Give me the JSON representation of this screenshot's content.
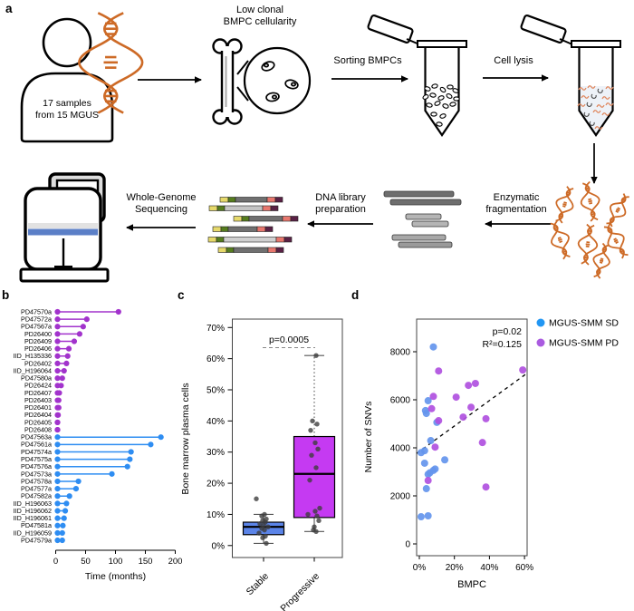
{
  "panels": {
    "a": "a",
    "b": "b",
    "c": "c",
    "d": "d"
  },
  "panel_a": {
    "person": {
      "lines": [
        "17 samples",
        "from 15 MGUS"
      ]
    },
    "bone": {
      "lines": [
        "Low clonal",
        "BMPC cellularity"
      ]
    },
    "sorting_label": "Sorting BMPCs",
    "lysis_label": "Cell lysis",
    "fragmentation": {
      "lines": [
        "Enzymatic",
        "fragmentation"
      ]
    },
    "library": {
      "lines": [
        "DNA library",
        "preparation"
      ]
    },
    "sequencing": {
      "lines": [
        "Whole-Genome",
        "Sequencing"
      ]
    }
  },
  "colors": {
    "sd_blue": "#2e8df2",
    "pd_purple": "#a233cc",
    "box_blue": "#5b84e8",
    "box_purple": "#c53af2",
    "scatter_blue": "#6495ed",
    "scatter_purple": "#b050e0",
    "legend_blue": "#2196f3",
    "legend_purple": "#aa5be0",
    "dna_orange": "#cd6a26",
    "jitter_gray": "#3d3d3d"
  },
  "chart_data": [
    {
      "type": "lollipop",
      "panel": "b",
      "xlabel": "Time (months)",
      "xticks": [
        0,
        50,
        100,
        150,
        200
      ],
      "xlim": [
        0,
        205
      ],
      "legend_note": "purple = progressive (PD), blue = stable (SD)",
      "samples": [
        {
          "id": "PD47570a",
          "group": "PD",
          "time": 105
        },
        {
          "id": "PD47572a",
          "group": "PD",
          "time": 52
        },
        {
          "id": "PD47567a",
          "group": "PD",
          "time": 46
        },
        {
          "id": "PD26400",
          "group": "PD",
          "time": 40
        },
        {
          "id": "PD26409",
          "group": "PD",
          "time": 31
        },
        {
          "id": "PD26406",
          "group": "PD",
          "time": 22
        },
        {
          "id": "IID_H135336",
          "group": "PD",
          "time": 20
        },
        {
          "id": "PD26402",
          "group": "PD",
          "time": 18
        },
        {
          "id": "IID_H196064",
          "group": "PD",
          "time": 14
        },
        {
          "id": "PD47580a",
          "group": "PD",
          "time": 11
        },
        {
          "id": "PD26424",
          "group": "PD",
          "time": 9
        },
        {
          "id": "PD26407",
          "group": "PD",
          "time": 6
        },
        {
          "id": "PD26403",
          "group": "PD",
          "time": 5
        },
        {
          "id": "PD26401",
          "group": "PD",
          "time": 5
        },
        {
          "id": "PD26404",
          "group": "PD",
          "time": 4
        },
        {
          "id": "PD26405",
          "group": "PD",
          "time": 3
        },
        {
          "id": "PD26408",
          "group": "PD",
          "time": 3
        },
        {
          "id": "PD47563a",
          "group": "SD",
          "time": 176
        },
        {
          "id": "PD47561a",
          "group": "SD",
          "time": 159
        },
        {
          "id": "PD47574a",
          "group": "SD",
          "time": 126
        },
        {
          "id": "PD47575a",
          "group": "SD",
          "time": 124
        },
        {
          "id": "PD47576a",
          "group": "SD",
          "time": 120
        },
        {
          "id": "PD47573a",
          "group": "SD",
          "time": 94
        },
        {
          "id": "PD47578a",
          "group": "SD",
          "time": 38
        },
        {
          "id": "PD47577a",
          "group": "SD",
          "time": 34
        },
        {
          "id": "PD47582a",
          "group": "SD",
          "time": 23
        },
        {
          "id": "IID_H196063",
          "group": "SD",
          "time": 18
        },
        {
          "id": "IID_H196062",
          "group": "SD",
          "time": 16
        },
        {
          "id": "IID_H196061",
          "group": "SD",
          "time": 14
        },
        {
          "id": "PD47581a",
          "group": "SD",
          "time": 12
        },
        {
          "id": "IID_H196059",
          "group": "SD",
          "time": 11
        },
        {
          "id": "PD47579a",
          "group": "SD",
          "time": 11
        }
      ]
    },
    {
      "type": "boxplot",
      "panel": "c",
      "ylabel": "Bone marrow plasma cells",
      "yticks_pct": [
        0,
        10,
        20,
        30,
        40,
        50,
        60,
        70
      ],
      "ylim": [
        0,
        73
      ],
      "annotation": "p=0.0005",
      "categories": [
        "Stable",
        "Progressive"
      ],
      "boxes": [
        {
          "label": "Stable",
          "fill": "#5b84e8",
          "q1": 3.5,
          "median": 6,
          "q3": 7.5,
          "whisker_low": 0.7,
          "whisker_high": 10,
          "points": [
            15,
            10,
            9.5,
            8.5,
            8,
            7.5,
            7,
            6.5,
            6,
            5.5,
            5,
            4,
            3,
            2.5,
            0.7
          ]
        },
        {
          "label": "Progressive",
          "fill": "#c53af2",
          "q1": 9,
          "median": 23,
          "q3": 35,
          "whisker_low": 4.5,
          "whisker_high": 61,
          "whisker_high_dotted": true,
          "points": [
            61,
            40,
            39,
            37,
            33,
            31,
            29,
            25,
            21,
            12,
            11,
            10,
            9.5,
            8,
            6,
            5,
            4.5
          ]
        }
      ]
    },
    {
      "type": "scatter",
      "panel": "d",
      "xlabel": "BMPC",
      "ylabel": "Number of SNVs",
      "xticks_pct": [
        0,
        20,
        40,
        60
      ],
      "yticks": [
        0,
        2000,
        4000,
        6000,
        8000
      ],
      "xlim": [
        -2,
        63
      ],
      "ylim": [
        0,
        9300
      ],
      "stats": [
        "p=0.02",
        "R²=0.125"
      ],
      "trend": {
        "x1": -1.5,
        "y1": 3770,
        "x2": 61,
        "y2": 7080,
        "style": "dashed"
      },
      "legend": [
        {
          "label": "MGUS-SMM SD",
          "color": "#2196f3"
        },
        {
          "label": "MGUS-SMM PD",
          "color": "#aa5be0"
        }
      ],
      "series": [
        {
          "name": "MGUS-SMM SD",
          "color": "#6495ed",
          "points": [
            [
              8,
              8200
            ],
            [
              5,
              5960
            ],
            [
              3.5,
              5550
            ],
            [
              4,
              5430
            ],
            [
              10,
              5060
            ],
            [
              6.5,
              4300
            ],
            [
              3,
              3880
            ],
            [
              1,
              3800
            ],
            [
              14.5,
              3500
            ],
            [
              3,
              3360
            ],
            [
              5,
              2900
            ],
            [
              6,
              2960
            ],
            [
              8,
              3060
            ],
            [
              9,
              3120
            ],
            [
              4,
              2300
            ],
            [
              1,
              1130
            ],
            [
              5,
              1170
            ]
          ]
        },
        {
          "name": "MGUS-SMM PD",
          "color": "#b050e0",
          "points": [
            [
              11,
              7200
            ],
            [
              59,
              7240
            ],
            [
              28,
              6600
            ],
            [
              32,
              6680
            ],
            [
              21,
              6110
            ],
            [
              8,
              6140
            ],
            [
              7,
              5630
            ],
            [
              29.5,
              5690
            ],
            [
              25,
              5280
            ],
            [
              38,
              5210
            ],
            [
              11,
              5130
            ],
            [
              9,
              4030
            ],
            [
              36,
              4220
            ],
            [
              5,
              2640
            ],
            [
              38,
              2370
            ]
          ]
        }
      ]
    }
  ]
}
